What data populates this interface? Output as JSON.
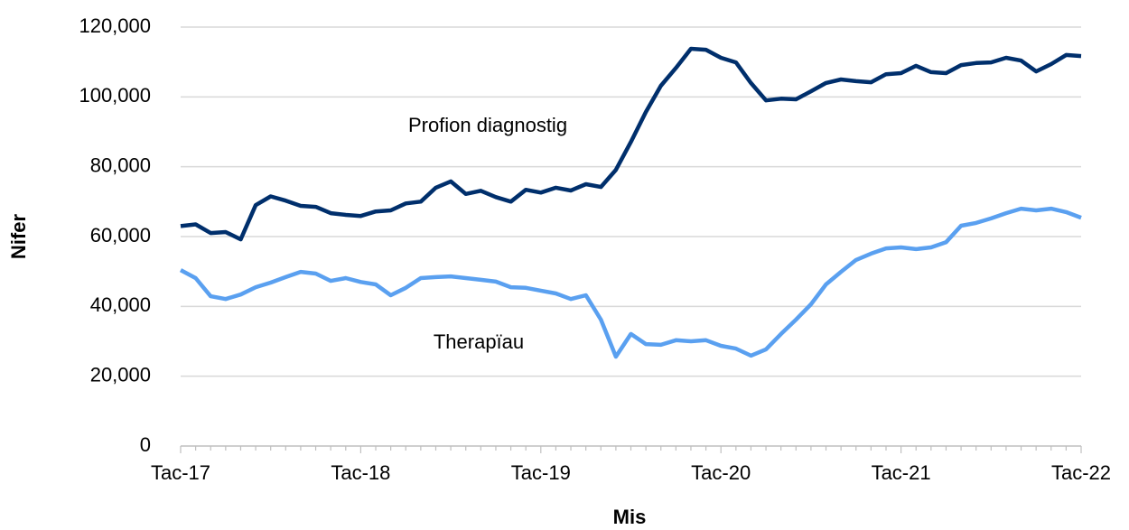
{
  "chart_data": {
    "type": "line",
    "xlabel": "Mis",
    "ylabel": "Nifer",
    "categories": [
      "Tac-17",
      null,
      null,
      null,
      null,
      null,
      null,
      null,
      null,
      null,
      null,
      null,
      "Tac-18",
      null,
      null,
      null,
      null,
      null,
      null,
      null,
      null,
      null,
      null,
      null,
      "Tac-19",
      null,
      null,
      null,
      null,
      null,
      null,
      null,
      null,
      null,
      null,
      null,
      "Tac-20",
      null,
      null,
      null,
      null,
      null,
      null,
      null,
      null,
      null,
      null,
      null,
      "Tac-21",
      null,
      null,
      null,
      null,
      null,
      null,
      null,
      null,
      null,
      null,
      null,
      "Tac-22"
    ],
    "series": [
      {
        "name": "Profion diagnostig",
        "color": "#002f6c",
        "values": [
          63000,
          63500,
          61000,
          61300,
          59200,
          69000,
          71500,
          70300,
          68800,
          68500,
          66700,
          66200,
          65900,
          67200,
          67500,
          69500,
          70000,
          74000,
          75800,
          72200,
          73100,
          71300,
          70000,
          73400,
          72600,
          74000,
          73200,
          75000,
          74200,
          79100,
          87100,
          95700,
          103200,
          108300,
          113800,
          113500,
          111200,
          109900,
          104000,
          99000,
          99500,
          99300,
          101600,
          104000,
          105000,
          104500,
          104200,
          106500,
          106800,
          108900,
          107100,
          106800,
          109100,
          109700,
          109900,
          111200,
          110400,
          107300,
          109400,
          112000,
          111700
        ]
      },
      {
        "name": "Therapïau",
        "color": "#5aa0f0",
        "values": [
          50400,
          48100,
          42900,
          42100,
          43400,
          45500,
          46800,
          48400,
          49900,
          49400,
          47300,
          48100,
          47000,
          46300,
          43200,
          45300,
          48100,
          48400,
          48600,
          48100,
          47600,
          47100,
          45500,
          45300,
          44500,
          43700,
          42100,
          43200,
          36200,
          25600,
          32100,
          29200,
          29000,
          30300,
          30000,
          30300,
          28700,
          27900,
          25900,
          27700,
          32100,
          36200,
          40600,
          46300,
          49900,
          53300,
          55100,
          56600,
          56900,
          56400,
          56900,
          58400,
          63100,
          63900,
          65200,
          66700,
          68000,
          67500,
          68000,
          67000,
          65400
        ]
      }
    ],
    "ylim": [
      0,
      120000
    ],
    "yticks": [
      0,
      {
        "value": 20000,
        "label": "20,000"
      },
      {
        "value": 40000,
        "label": "40,000"
      },
      {
        "value": 60000,
        "label": "60,000"
      },
      {
        "value": 80000,
        "label": "80,000"
      },
      {
        "value": 100000,
        "label": "100,000"
      },
      {
        "value": 120000,
        "label": "120,000"
      }
    ],
    "grid": true
  }
}
